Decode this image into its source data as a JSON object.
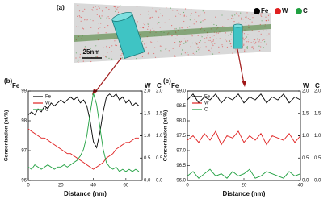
{
  "panel_a": {
    "label": "(a)",
    "scale_bar": "25nm",
    "legend": [
      {
        "name": "Fe",
        "color": "#000000"
      },
      {
        "name": "W",
        "color": "#e02020"
      },
      {
        "name": "C",
        "color": "#20a040"
      }
    ]
  },
  "chart_data": [
    {
      "type": "line",
      "panel_label": "(b)",
      "x_label": "Distance (nm)",
      "y_label": "Concentration (at.%)",
      "y_axis_title": "Fe",
      "y2_axis_title": "W",
      "y3_axis_title": "C",
      "x": [
        0,
        2,
        4,
        6,
        8,
        10,
        12,
        14,
        16,
        18,
        20,
        22,
        24,
        26,
        28,
        30,
        32,
        34,
        36,
        38,
        40,
        42,
        44,
        46,
        48,
        50,
        52,
        54,
        56,
        58,
        60,
        62,
        64,
        66,
        68
      ],
      "xlim": [
        0,
        70
      ],
      "xticks": [
        0,
        20,
        40,
        60
      ],
      "ylim": [
        96,
        99
      ],
      "yticks": [
        96,
        97,
        98,
        99
      ],
      "y2lim": [
        0,
        2
      ],
      "y2ticks": [
        {
          "value": 0,
          "label": "0.0"
        },
        0.5,
        {
          "value": 1,
          "label": "1.0"
        },
        1.5,
        {
          "value": 2,
          "label": "2.0"
        }
      ],
      "y3lim": [
        0,
        2
      ],
      "y3ticks": [
        {
          "value": 0,
          "label": "0.0"
        },
        0.5,
        {
          "value": 1,
          "label": "1.0"
        },
        1.5,
        {
          "value": 2,
          "label": "2.0"
        }
      ],
      "series": [
        {
          "name": "Fe",
          "color": "#000000",
          "axis": "y",
          "values": [
            98.2,
            98.3,
            98.2,
            98.4,
            98.3,
            98.5,
            98.4,
            98.6,
            98.5,
            98.6,
            98.7,
            98.6,
            98.7,
            98.8,
            98.7,
            98.8,
            98.6,
            98.7,
            98.5,
            98.0,
            97.3,
            97.1,
            97.6,
            98.3,
            98.8,
            98.9,
            98.8,
            98.9,
            98.7,
            98.8,
            98.6,
            98.7,
            98.5,
            98.6,
            98.5
          ]
        },
        {
          "name": "W",
          "color": "#e02020",
          "axis": "y2",
          "values": [
            1.15,
            1.1,
            1.05,
            1.0,
            0.95,
            0.95,
            0.9,
            0.85,
            0.8,
            0.75,
            0.7,
            0.65,
            0.6,
            0.6,
            0.55,
            0.5,
            0.45,
            0.4,
            0.35,
            0.3,
            0.25,
            0.3,
            0.35,
            0.4,
            0.5,
            0.55,
            0.6,
            0.7,
            0.75,
            0.8,
            0.85,
            0.85,
            0.9,
            0.95,
            0.95
          ]
        },
        {
          "name": "C",
          "color": "#20a040",
          "axis": "y3",
          "values": [
            0.3,
            0.25,
            0.35,
            0.3,
            0.25,
            0.3,
            0.35,
            0.3,
            0.25,
            0.3,
            0.3,
            0.35,
            0.3,
            0.35,
            0.4,
            0.45,
            0.55,
            0.7,
            1.0,
            1.5,
            1.95,
            1.7,
            1.2,
            0.7,
            0.4,
            0.3,
            0.25,
            0.3,
            0.2,
            0.25,
            0.2,
            0.25,
            0.2,
            0.25,
            0.2
          ]
        }
      ]
    },
    {
      "type": "line",
      "panel_label": "(c)",
      "x_label": "Distance (nm)",
      "y_label": "Concentration (at.%)",
      "y_axis_title": "Fe",
      "y2_axis_title": "W",
      "y3_axis_title": "C",
      "x": [
        0,
        2,
        4,
        6,
        8,
        10,
        12,
        14,
        16,
        18,
        20,
        22,
        24,
        26,
        28,
        30,
        32,
        34,
        36,
        38,
        40
      ],
      "xlim": [
        0,
        40
      ],
      "xticks": [
        0,
        20,
        40
      ],
      "ylim": [
        96,
        99
      ],
      "yticks": [
        {
          "value": 96,
          "label": "96.0"
        },
        96.5,
        {
          "value": 97,
          "label": "97.0"
        },
        97.5,
        {
          "value": 98,
          "label": "98.0"
        },
        98.5,
        {
          "value": 99,
          "label": "99.0"
        }
      ],
      "y2lim": [
        0,
        2
      ],
      "y2ticks": [
        {
          "value": 0,
          "label": "0.0"
        },
        0.5,
        {
          "value": 1,
          "label": "1.0"
        },
        1.5,
        {
          "value": 2,
          "label": "2.0"
        }
      ],
      "y3lim": [
        0,
        2
      ],
      "y3ticks": [
        {
          "value": 0,
          "label": "0.0"
        },
        0.5,
        {
          "value": 1,
          "label": "1.0"
        },
        1.5,
        {
          "value": 2,
          "label": "2.0"
        }
      ],
      "series": [
        {
          "name": "Fe",
          "color": "#000000",
          "axis": "y",
          "values": [
            98.7,
            98.9,
            98.6,
            98.8,
            98.7,
            98.9,
            98.6,
            98.8,
            98.7,
            98.9,
            98.6,
            98.8,
            98.7,
            98.9,
            98.6,
            98.8,
            98.7,
            98.9,
            98.6,
            98.8,
            98.7
          ]
        },
        {
          "name": "W",
          "color": "#e02020",
          "axis": "y2",
          "values": [
            0.9,
            1.0,
            0.85,
            1.05,
            0.9,
            1.1,
            0.8,
            1.0,
            0.95,
            1.1,
            0.85,
            1.0,
            0.9,
            1.05,
            0.8,
            1.0,
            0.95,
            0.9,
            1.05,
            0.85,
            1.0
          ]
        },
        {
          "name": "C",
          "color": "#20a040",
          "axis": "y3",
          "values": [
            0.1,
            0.2,
            0.05,
            0.15,
            0.25,
            0.1,
            0.15,
            0.05,
            0.2,
            0.1,
            0.15,
            0.25,
            0.05,
            0.1,
            0.2,
            0.15,
            0.1,
            0.05,
            0.2,
            0.1,
            0.15
          ]
        }
      ]
    }
  ]
}
